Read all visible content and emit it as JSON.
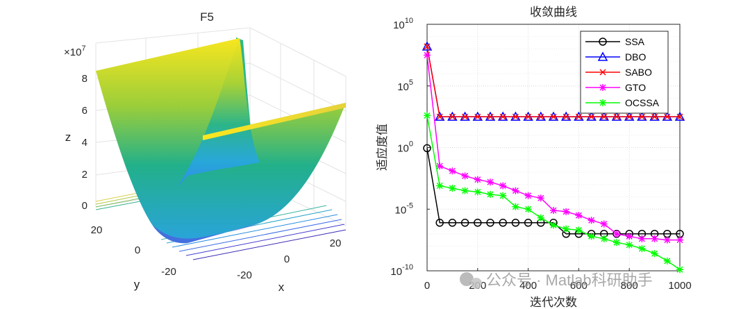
{
  "surface_plot": {
    "title": "F5",
    "z_exponent_base": "×10",
    "z_exponent_power": "7",
    "z_ticks": [
      "0",
      "2",
      "4",
      "6",
      "8"
    ],
    "y_ticks": [
      "20",
      "0",
      "-20"
    ],
    "x_ticks": [
      "-20",
      "0",
      "20"
    ],
    "xlabel": "x",
    "ylabel": "y",
    "zlabel": "z"
  },
  "chart_data": {
    "type": "line",
    "title": "收敛曲线",
    "xlabel": "迭代次数",
    "ylabel": "适应度值",
    "xlim": [
      0,
      1000
    ],
    "ylim_log10": [
      -10,
      10
    ],
    "yscale": "log",
    "grid": true,
    "legend_position": "top-right",
    "x_ticks": [
      "0",
      "200",
      "400",
      "600",
      "800",
      "1000"
    ],
    "y_ticks": [
      {
        "base": "10",
        "exp": "10",
        "value": 10
      },
      {
        "base": "10",
        "exp": "5",
        "value": 5
      },
      {
        "base": "10",
        "exp": "0",
        "value": 0
      },
      {
        "base": "10",
        "exp": "-5",
        "value": -5
      },
      {
        "base": "10",
        "exp": "-10",
        "value": -10
      }
    ],
    "series": [
      {
        "name": "SSA",
        "color": "#000000",
        "marker": "circle",
        "x": [
          0,
          50,
          100,
          150,
          200,
          250,
          300,
          350,
          400,
          450,
          500,
          550,
          600,
          650,
          700,
          750,
          800,
          850,
          900,
          950,
          1000
        ],
        "log10_y": [
          -0.05,
          -6.1,
          -6.1,
          -6.1,
          -6.1,
          -6.1,
          -6.1,
          -6.1,
          -6.1,
          -6.1,
          -6.1,
          -7.0,
          -7.0,
          -7.0,
          -7.0,
          -7.0,
          -7.0,
          -7.0,
          -7.0,
          -7.0,
          -7.0
        ]
      },
      {
        "name": "DBO",
        "color": "#0000ff",
        "marker": "triangle",
        "x": [
          0,
          50,
          100,
          150,
          200,
          250,
          300,
          350,
          400,
          450,
          500,
          550,
          600,
          650,
          700,
          750,
          800,
          850,
          900,
          950,
          1000
        ],
        "log10_y": [
          8.2,
          2.5,
          2.5,
          2.5,
          2.5,
          2.5,
          2.5,
          2.5,
          2.5,
          2.5,
          2.5,
          2.5,
          2.5,
          2.5,
          2.5,
          2.5,
          2.5,
          2.5,
          2.5,
          2.5,
          2.5
        ]
      },
      {
        "name": "SABO",
        "color": "#ff0000",
        "marker": "x",
        "x": [
          0,
          50,
          100,
          150,
          200,
          250,
          300,
          350,
          400,
          450,
          500,
          550,
          600,
          650,
          700,
          750,
          800,
          850,
          900,
          950,
          1000
        ],
        "log10_y": [
          8.2,
          2.5,
          2.5,
          2.5,
          2.5,
          2.5,
          2.5,
          2.5,
          2.5,
          2.5,
          2.5,
          2.5,
          2.5,
          2.5,
          2.5,
          2.5,
          2.5,
          2.5,
          2.5,
          2.5,
          2.5
        ]
      },
      {
        "name": "GTO",
        "color": "#ff00ff",
        "marker": "star",
        "x": [
          0,
          50,
          100,
          150,
          200,
          250,
          300,
          350,
          400,
          450,
          500,
          550,
          600,
          650,
          700,
          750,
          800,
          850,
          900,
          950,
          1000
        ],
        "log10_y": [
          7.5,
          -1.5,
          -1.9,
          -2.3,
          -2.6,
          -2.8,
          -3.1,
          -3.5,
          -3.9,
          -4.1,
          -5.1,
          -5.2,
          -5.5,
          -5.9,
          -6.2,
          -7.0,
          -7.2,
          -7.4,
          -7.4,
          -7.5,
          -7.5
        ]
      },
      {
        "name": "OCSSA",
        "color": "#00ff00",
        "marker": "star",
        "x": [
          0,
          50,
          100,
          150,
          200,
          250,
          300,
          350,
          400,
          450,
          500,
          550,
          600,
          650,
          700,
          750,
          800,
          850,
          900,
          950,
          1000
        ],
        "log10_y": [
          2.6,
          -3.1,
          -3.3,
          -3.5,
          -3.6,
          -3.8,
          -3.9,
          -4.8,
          -5.0,
          -5.7,
          -6.3,
          -6.6,
          -6.7,
          -7.2,
          -7.4,
          -7.7,
          -7.9,
          -8.2,
          -8.6,
          -9.2,
          -9.9
        ]
      }
    ]
  },
  "watermark": {
    "text": "公众号 · Matlab科研助手"
  }
}
